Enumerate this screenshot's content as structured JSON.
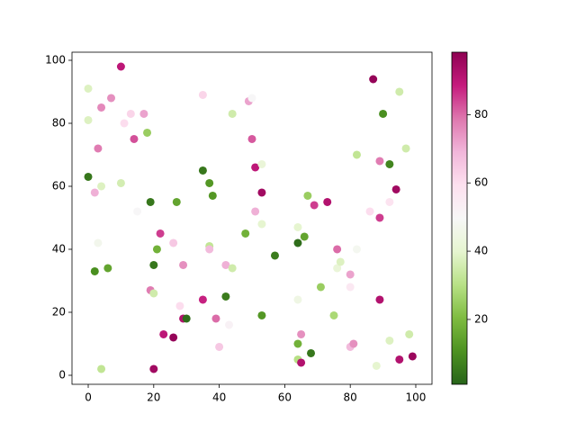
{
  "chart_data": {
    "type": "scatter",
    "colormap": "PiYG_r",
    "x": [
      0,
      0,
      0,
      2,
      2,
      3,
      3,
      4,
      4,
      4,
      6,
      7,
      10,
      10,
      11,
      13,
      14,
      15,
      17,
      18,
      19,
      19,
      20,
      20,
      20,
      21,
      22,
      23,
      26,
      26,
      27,
      28,
      29,
      29,
      30,
      35,
      35,
      35,
      37,
      37,
      37,
      38,
      39,
      40,
      42,
      42,
      43,
      44,
      44,
      48,
      49,
      50,
      50,
      51,
      51,
      53,
      53,
      53,
      53,
      57,
      64,
      64,
      64,
      64,
      64,
      65,
      65,
      66,
      67,
      68,
      69,
      71,
      73,
      75,
      76,
      76,
      77,
      80,
      80,
      80,
      81,
      82,
      82,
      86,
      87,
      88,
      89,
      89,
      89,
      90,
      92,
      92,
      92,
      94,
      95,
      95,
      97,
      98,
      99
    ],
    "y": [
      91,
      81,
      63,
      58,
      33,
      72,
      42,
      85,
      60,
      2,
      34,
      88,
      98,
      61,
      80,
      83,
      75,
      52,
      83,
      77,
      55,
      27,
      35,
      26,
      2,
      40,
      45,
      13,
      42,
      12,
      55,
      22,
      35,
      18,
      18,
      89,
      65,
      24,
      61,
      41,
      40,
      57,
      18,
      9,
      35,
      25,
      16,
      83,
      34,
      45,
      87,
      88,
      75,
      66,
      52,
      67,
      58,
      48,
      19,
      38,
      47,
      42,
      24,
      10,
      5,
      13,
      4,
      44,
      57,
      7,
      54,
      28,
      55,
      19,
      40,
      34,
      36,
      28,
      9,
      32,
      10,
      70,
      40,
      52,
      94,
      3,
      68,
      50,
      24,
      83,
      67,
      11,
      55,
      59,
      90,
      5,
      72,
      13,
      6
    ],
    "c": [
      38,
      38,
      5,
      70,
      10,
      78,
      47,
      76,
      38,
      32,
      15,
      75,
      90,
      36,
      60,
      62,
      83,
      50,
      72,
      25,
      5,
      78,
      5,
      35,
      95,
      18,
      85,
      90,
      65,
      97,
      15,
      60,
      75,
      92,
      3,
      62,
      5,
      88,
      12,
      32,
      68,
      12,
      80,
      65,
      70,
      6,
      52,
      35,
      35,
      18,
      72,
      50,
      82,
      90,
      70,
      42,
      95,
      40,
      12,
      6,
      40,
      3,
      45,
      18,
      30,
      75,
      92,
      15,
      25,
      5,
      85,
      25,
      92,
      28,
      80,
      42,
      38,
      56,
      68,
      72,
      75,
      32,
      48,
      60,
      97,
      40,
      78,
      85,
      92,
      10,
      8,
      38,
      58,
      95,
      35,
      92,
      35,
      35,
      96
    ],
    "xlim": [
      -4.95,
      104.95
    ],
    "ylim": [
      -2.86,
      102.57
    ],
    "xticks": [
      0,
      20,
      40,
      60,
      80,
      100
    ],
    "yticks": [
      0,
      20,
      40,
      60,
      80,
      100
    ],
    "clim": [
      1,
      98.3
    ],
    "cticks": [
      20,
      40,
      60,
      80
    ]
  }
}
